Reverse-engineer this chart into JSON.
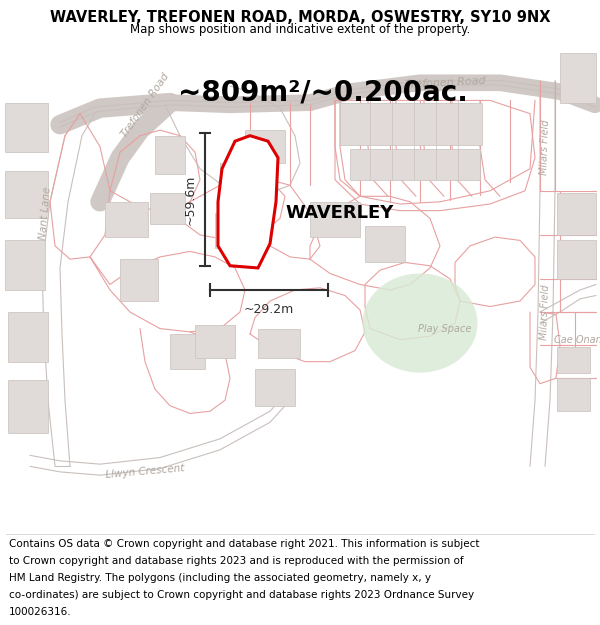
{
  "title": "WAVERLEY, TREFONEN ROAD, MORDA, OSWESTRY, SY10 9NX",
  "subtitle": "Map shows position and indicative extent of the property.",
  "area_text": "~809m²/~0.200ac.",
  "property_label": "WAVERLEY",
  "dim_vertical": "~59.6m",
  "dim_horizontal": "~29.2m",
  "play_space_label": "Play Space",
  "footer_lines": [
    "Contains OS data © Crown copyright and database right 2021. This information is subject",
    "to Crown copyright and database rights 2023 and is reproduced with the permission of",
    "HM Land Registry. The polygons (including the associated geometry, namely x, y",
    "co-ordinates) are subject to Crown copyright and database rights 2023 Ordnance Survey",
    "100026316."
  ],
  "bg_color": "#f8f6f4",
  "map_bg": "#ffffff",
  "building_fill": "#e0dbd8",
  "building_edge": "#c8c0bc",
  "boundary_color": "#e8a0a0",
  "road_line_color": "#c8c0bc",
  "road_label_color": "#b0a8a0",
  "plot_fill": "#ffffff",
  "plot_stroke": "#dd0000",
  "green_space_color": "#d8ead4",
  "dim_line_color": "#303030",
  "title_fontsize": 10.5,
  "subtitle_fontsize": 8.5,
  "area_fontsize": 20,
  "label_fontsize": 13,
  "footer_fontsize": 7.5
}
